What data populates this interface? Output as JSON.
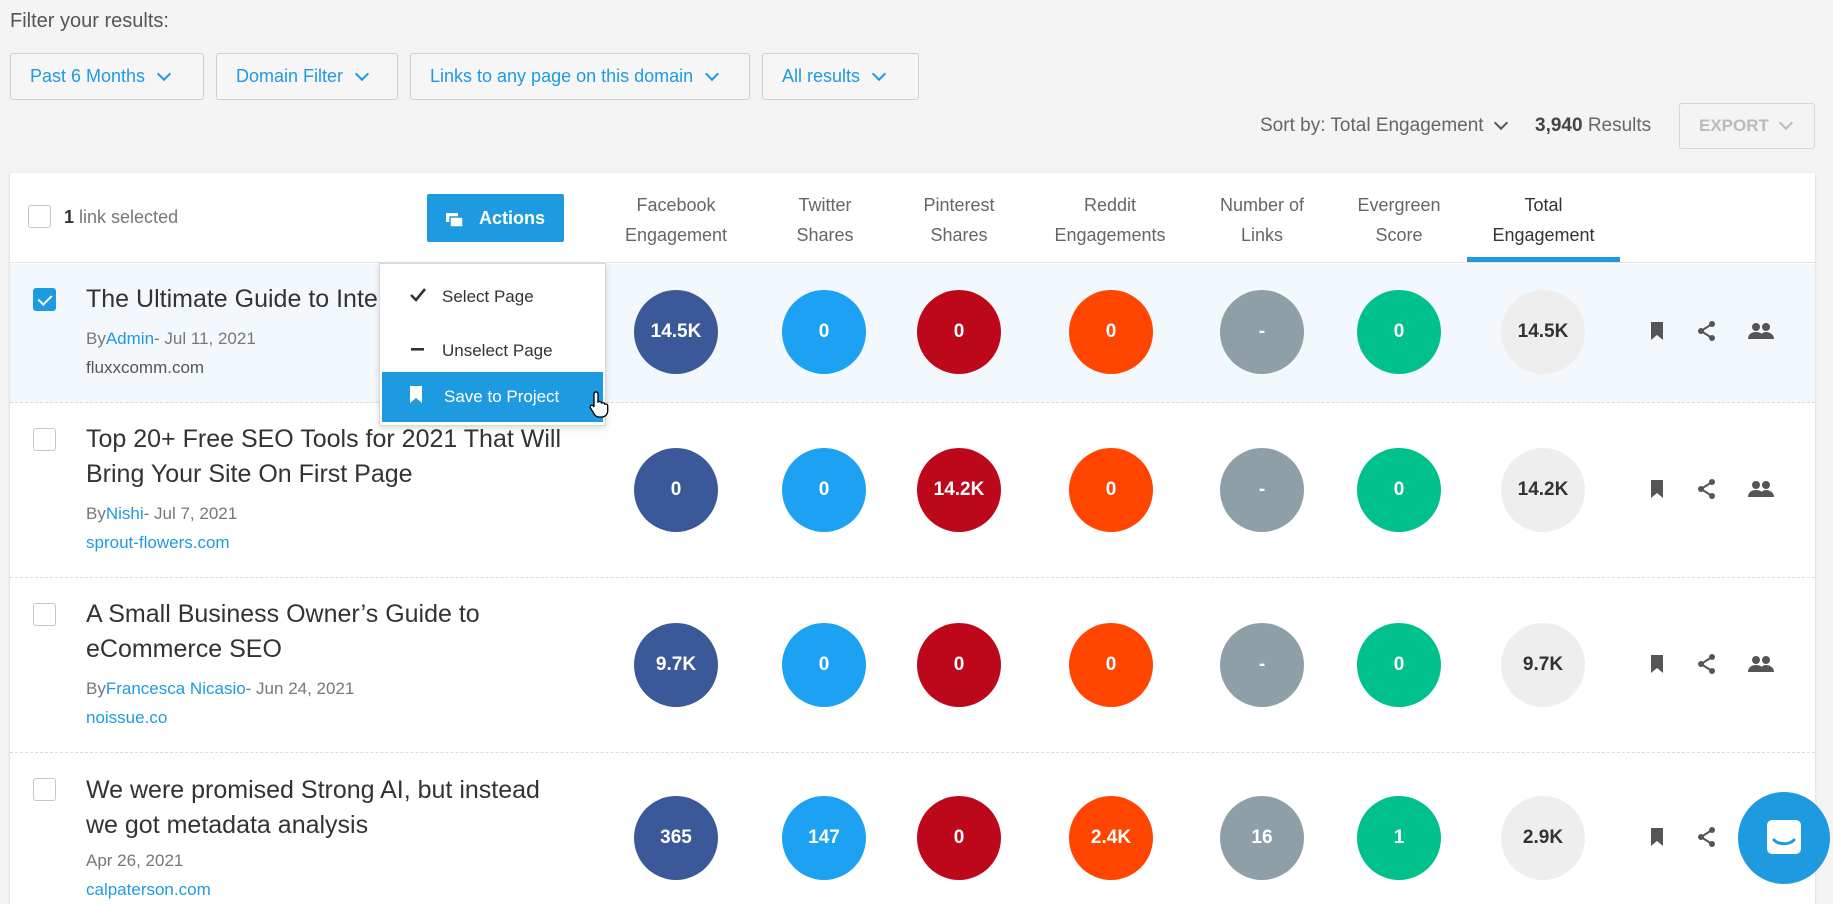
{
  "filters": {
    "label": "Filter your results:",
    "buttons": [
      {
        "label": "Past 6 Months"
      },
      {
        "label": "Domain Filter"
      },
      {
        "label": "Links to any page on this domain"
      },
      {
        "label": "All results"
      }
    ]
  },
  "sort": {
    "label": "Sort by: Total Engagement",
    "count": "3,940",
    "count_suffix": "Results",
    "export": "EXPORT"
  },
  "table": {
    "selected_count": "1",
    "selected_text": "link selected",
    "actions_label": "Actions",
    "columns": [
      {
        "line1": "Facebook",
        "line2": "Engagement"
      },
      {
        "line1": "Twitter",
        "line2": "Shares"
      },
      {
        "line1": "Pinterest",
        "line2": "Shares"
      },
      {
        "line1": "Reddit",
        "line2": "Engagements"
      },
      {
        "line1": "Number of",
        "line2": "Links"
      },
      {
        "line1": "Evergreen",
        "line2": "Score"
      },
      {
        "line1": "Total",
        "line2": "Engagement"
      }
    ],
    "rows": [
      {
        "title": "The Ultimate Guide to Inte",
        "by": "By",
        "author": "Admin",
        "date": "- Jul 11, 2021",
        "domain": "fluxxcomm.com",
        "metrics": [
          "14.5K",
          "0",
          "0",
          "0",
          "-",
          "0",
          "14.5K"
        ],
        "checked": true
      },
      {
        "title": "Top 20+ Free SEO Tools for 2021 That Will Bring Your Site On First Page",
        "by": "By",
        "author": "Nishi",
        "date": "- Jul 7, 2021",
        "domain": "sprout-flowers.com",
        "metrics": [
          "0",
          "0",
          "14.2K",
          "0",
          "-",
          "0",
          "14.2K"
        ],
        "checked": false
      },
      {
        "title": "A Small Business Owner’s Guide to eCommerce SEO",
        "by": "By",
        "author": "Francesca Nicasio",
        "date": "- Jun 24, 2021",
        "domain": "noissue.co",
        "metrics": [
          "9.7K",
          "0",
          "0",
          "0",
          "-",
          "0",
          "9.7K"
        ],
        "checked": false
      },
      {
        "title": "We were promised Strong AI, but instead we got metadata analysis",
        "by": "",
        "author": "",
        "date": "Apr 26, 2021",
        "domain": "calpaterson.com",
        "metrics": [
          "365",
          "147",
          "0",
          "2.4K",
          "16",
          "1",
          "2.9K"
        ],
        "checked": false
      }
    ]
  },
  "actions_menu": {
    "items": [
      {
        "label": "Select Page"
      },
      {
        "label": "Unselect Page"
      },
      {
        "label": "Save to Project"
      }
    ]
  },
  "colors": {
    "accent": "#1e9be0",
    "facebook": "#3b5998",
    "twitter": "#1da1f2",
    "pinterest": "#bd081c",
    "reddit": "#ff4500",
    "links": "#8e9fa8",
    "evergreen": "#00c08b",
    "total": "#eeeeee"
  }
}
